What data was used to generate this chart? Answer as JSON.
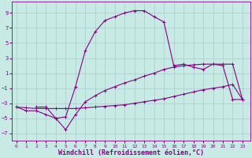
{
  "background_color": "#c8eae4",
  "line_color": "#880088",
  "grid_color": "#a8cccc",
  "xlabel": "Windchill (Refroidissement éolien,°C)",
  "xlabel_fontsize": 6,
  "ytick_vals": [
    -7,
    -5,
    -3,
    -1,
    1,
    3,
    5,
    7,
    9
  ],
  "xtick_vals": [
    0,
    1,
    2,
    3,
    4,
    5,
    6,
    7,
    8,
    9,
    10,
    11,
    12,
    13,
    14,
    15,
    16,
    17,
    18,
    19,
    20,
    21,
    22,
    23
  ],
  "xlim": [
    -0.5,
    23.8
  ],
  "ylim": [
    -8.0,
    10.5
  ],
  "curve_main_x": [
    2,
    3,
    4,
    5,
    6,
    7,
    8,
    9,
    10,
    11,
    12,
    13,
    14,
    15,
    16,
    17,
    18,
    19,
    20,
    21,
    22,
    23
  ],
  "curve_main_y": [
    -3.5,
    -3.5,
    -5.0,
    -4.8,
    -0.8,
    4.0,
    6.5,
    8.0,
    8.5,
    9.0,
    9.3,
    9.3,
    8.5,
    7.8,
    2.0,
    2.2,
    1.8,
    1.5,
    2.2,
    2.0,
    -2.5,
    -2.5
  ],
  "curve_mid_x": [
    0,
    1,
    2,
    3,
    4,
    5,
    6,
    7,
    8,
    9,
    10,
    11,
    12,
    13,
    14,
    15,
    16,
    17,
    18,
    19,
    20,
    21,
    22,
    23
  ],
  "curve_mid_y": [
    -3.5,
    -4.0,
    -4.0,
    -4.5,
    -5.0,
    -6.5,
    -4.5,
    -2.8,
    -2.0,
    -1.3,
    -0.8,
    -0.3,
    0.1,
    0.6,
    1.0,
    1.5,
    1.8,
    2.0,
    2.1,
    2.2,
    2.2,
    2.2,
    2.2,
    -2.5
  ],
  "curve_low_x": [
    0,
    1,
    2,
    3,
    4,
    5,
    6,
    7,
    8,
    9,
    10,
    11,
    12,
    13,
    14,
    15,
    16,
    17,
    18,
    19,
    20,
    21,
    22,
    23
  ],
  "curve_low_y": [
    -3.5,
    -3.6,
    -3.7,
    -3.7,
    -3.7,
    -3.7,
    -3.7,
    -3.6,
    -3.5,
    -3.4,
    -3.3,
    -3.2,
    -3.0,
    -2.8,
    -2.6,
    -2.4,
    -2.1,
    -1.8,
    -1.5,
    -1.2,
    -1.0,
    -0.8,
    -0.5,
    -2.5
  ]
}
